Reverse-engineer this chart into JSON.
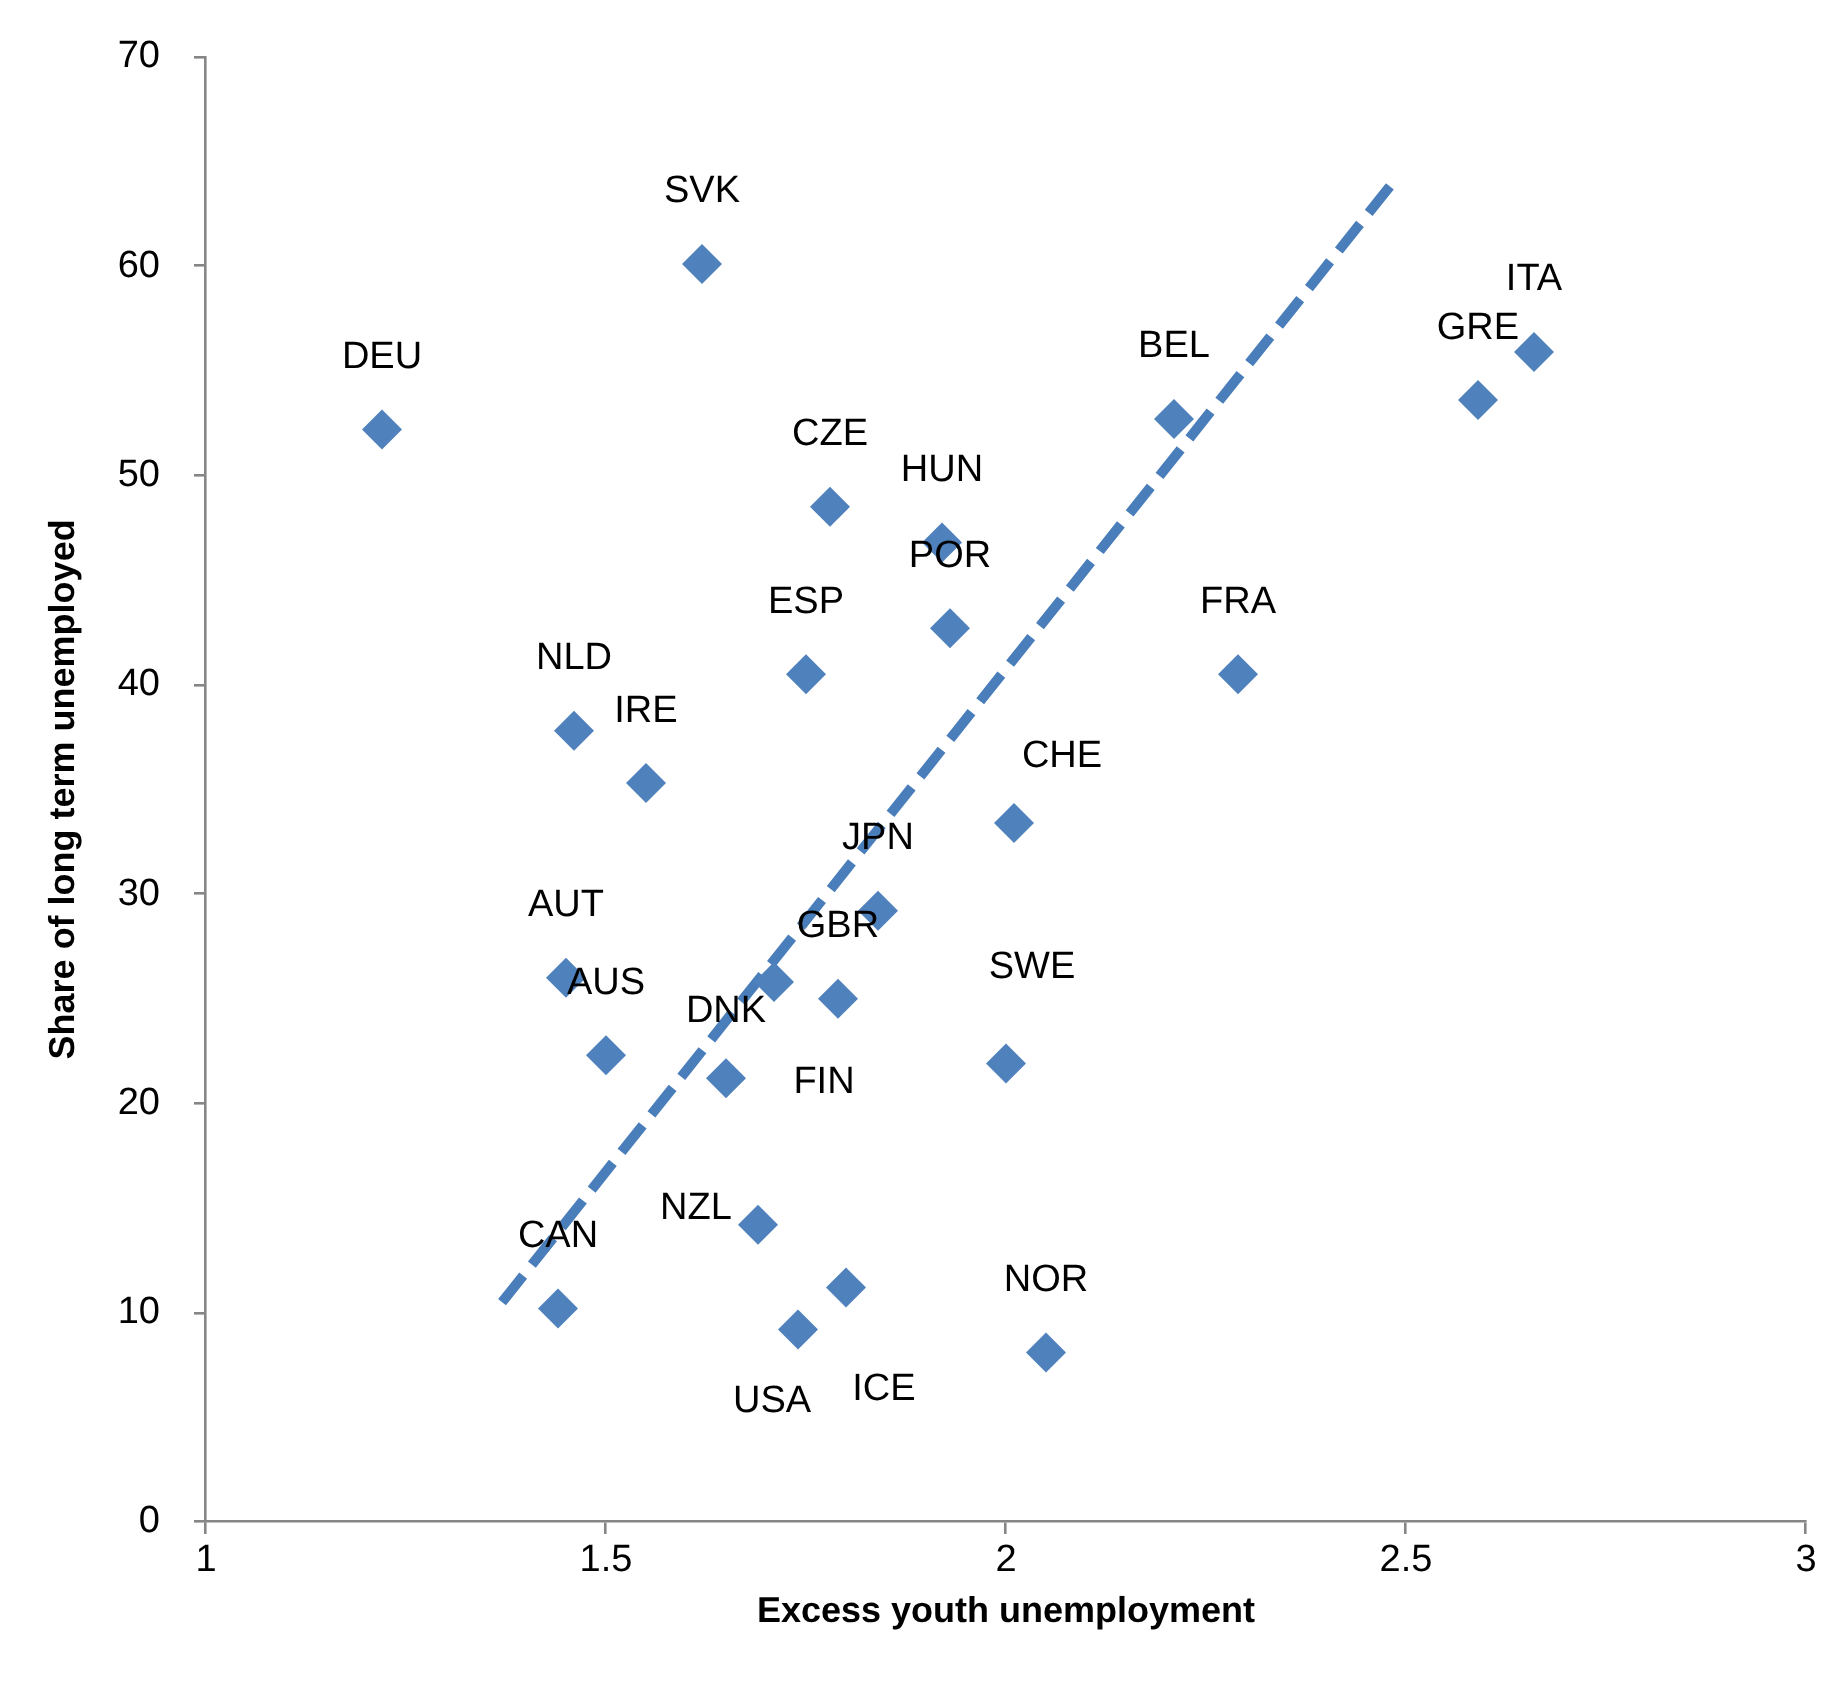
{
  "chart_data": {
    "type": "scatter",
    "xlabel": "Excess youth unemployment",
    "ylabel": "Share of long term unemployed",
    "xlim": [
      1,
      3
    ],
    "ylim": [
      0,
      70
    ],
    "xticks": [
      1,
      1.5,
      2,
      2.5,
      3
    ],
    "yticks": [
      0,
      10,
      20,
      30,
      40,
      50,
      60,
      70
    ],
    "series": [
      {
        "type": "scatter",
        "color": "#4f81bd",
        "marker": "diamond",
        "x": [
          1.22,
          1.62,
          1.78,
          1.92,
          1.93,
          1.75,
          1.46,
          1.55,
          2.21,
          2.59,
          2.66,
          2.29,
          2.01,
          1.84,
          1.45,
          1.79,
          1.71,
          1.5,
          1.65,
          2.0,
          1.44,
          1.69,
          1.74,
          1.8,
          2.05
        ],
        "values": [
          52.2,
          60.1,
          48.5,
          46.8,
          42.7,
          40.5,
          37.8,
          35.3,
          52.7,
          53.6,
          55.9,
          40.5,
          33.4,
          29.2,
          26.0,
          25.0,
          25.8,
          22.3,
          21.2,
          21.9,
          10.2,
          14.2,
          9.2,
          11.2,
          8.1
        ]
      },
      {
        "type": "line",
        "color": "#4a7ebb",
        "marker": "none",
        "line_style": "dashed",
        "x": [
          1.37,
          2.49
        ],
        "values": [
          10.5,
          64.3
        ]
      }
    ],
    "annotations": [
      {
        "text": "DEU",
        "x": 1.22,
        "y": 52.2
      },
      {
        "text": "SVK",
        "x": 1.62,
        "y": 60.1
      },
      {
        "text": "CZE",
        "x": 1.78,
        "y": 48.5
      },
      {
        "text": "HUN",
        "x": 1.92,
        "y": 46.8
      },
      {
        "text": "POR",
        "x": 1.93,
        "y": 42.7
      },
      {
        "text": "ESP",
        "x": 1.75,
        "y": 40.5
      },
      {
        "text": "NLD",
        "x": 1.46,
        "y": 37.8
      },
      {
        "text": "IRE",
        "x": 1.55,
        "y": 35.3
      },
      {
        "text": "BEL",
        "x": 2.21,
        "y": 52.7
      },
      {
        "text": "GRE",
        "x": 2.59,
        "y": 53.6
      },
      {
        "text": "ITA",
        "x": 2.66,
        "y": 55.9
      },
      {
        "text": "FRA",
        "x": 2.29,
        "y": 40.5
      },
      {
        "text": "CHE",
        "x": 2.01,
        "y": 33.4
      },
      {
        "text": "JPN",
        "x": 1.84,
        "y": 29.2
      },
      {
        "text": "AUT",
        "x": 1.45,
        "y": 26.0
      },
      {
        "text": "GBR",
        "x": 1.79,
        "y": 25.0
      },
      {
        "text": "DNK",
        "x": 1.71,
        "y": 25.8
      },
      {
        "text": "AUS",
        "x": 1.5,
        "y": 22.3
      },
      {
        "text": "FIN",
        "x": 1.65,
        "y": 21.2
      },
      {
        "text": "SWE",
        "x": 2.0,
        "y": 21.9
      },
      {
        "text": "CAN",
        "x": 1.44,
        "y": 10.2
      },
      {
        "text": "NZL",
        "x": 1.69,
        "y": 14.2
      },
      {
        "text": "USA",
        "x": 1.74,
        "y": 9.2
      },
      {
        "text": "ICE",
        "x": 1.8,
        "y": 11.2
      },
      {
        "text": "NOR",
        "x": 2.05,
        "y": 8.1
      }
    ]
  }
}
